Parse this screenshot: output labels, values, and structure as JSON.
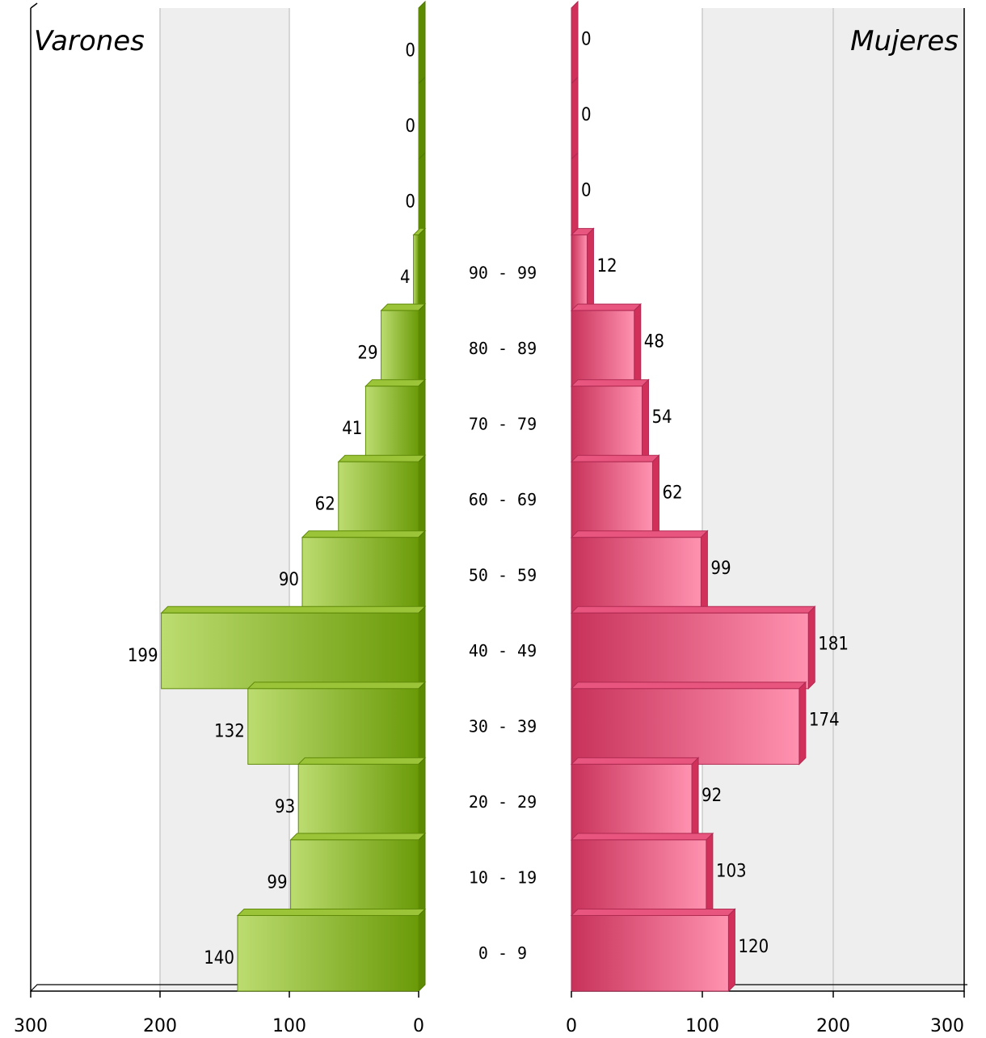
{
  "chart_data": [
    {
      "type": "bar",
      "orientation": "horizontal",
      "direction": "right-to-left",
      "title": "Varones",
      "categories": [
        "",
        "",
        "",
        "90 - 99",
        "80 - 89",
        "70 - 79",
        "60 - 69",
        "50 - 59",
        "40 - 49",
        "30 - 39",
        "20 - 29",
        "10 - 19",
        "0 - 9"
      ],
      "values": [
        0,
        0,
        0,
        4,
        29,
        41,
        62,
        90,
        199,
        132,
        93,
        99,
        140
      ],
      "xlim": [
        0,
        300
      ],
      "ticks": [
        "300",
        "200",
        "100",
        "0"
      ],
      "grid": true,
      "color": "#7a9f1a"
    },
    {
      "type": "bar",
      "orientation": "horizontal",
      "direction": "left-to-right",
      "title": "Mujeres",
      "categories": [
        "",
        "",
        "",
        "90 - 99",
        "80 - 89",
        "70 - 79",
        "60 - 69",
        "50 - 59",
        "40 - 49",
        "30 - 39",
        "20 - 29",
        "10 - 19",
        "0 - 9"
      ],
      "values": [
        0,
        0,
        0,
        12,
        48,
        54,
        62,
        99,
        181,
        174,
        92,
        103,
        120
      ],
      "xlim": [
        0,
        300
      ],
      "ticks": [
        "0",
        "100",
        "200",
        "300"
      ],
      "grid": true,
      "color": "#d8406a"
    }
  ]
}
